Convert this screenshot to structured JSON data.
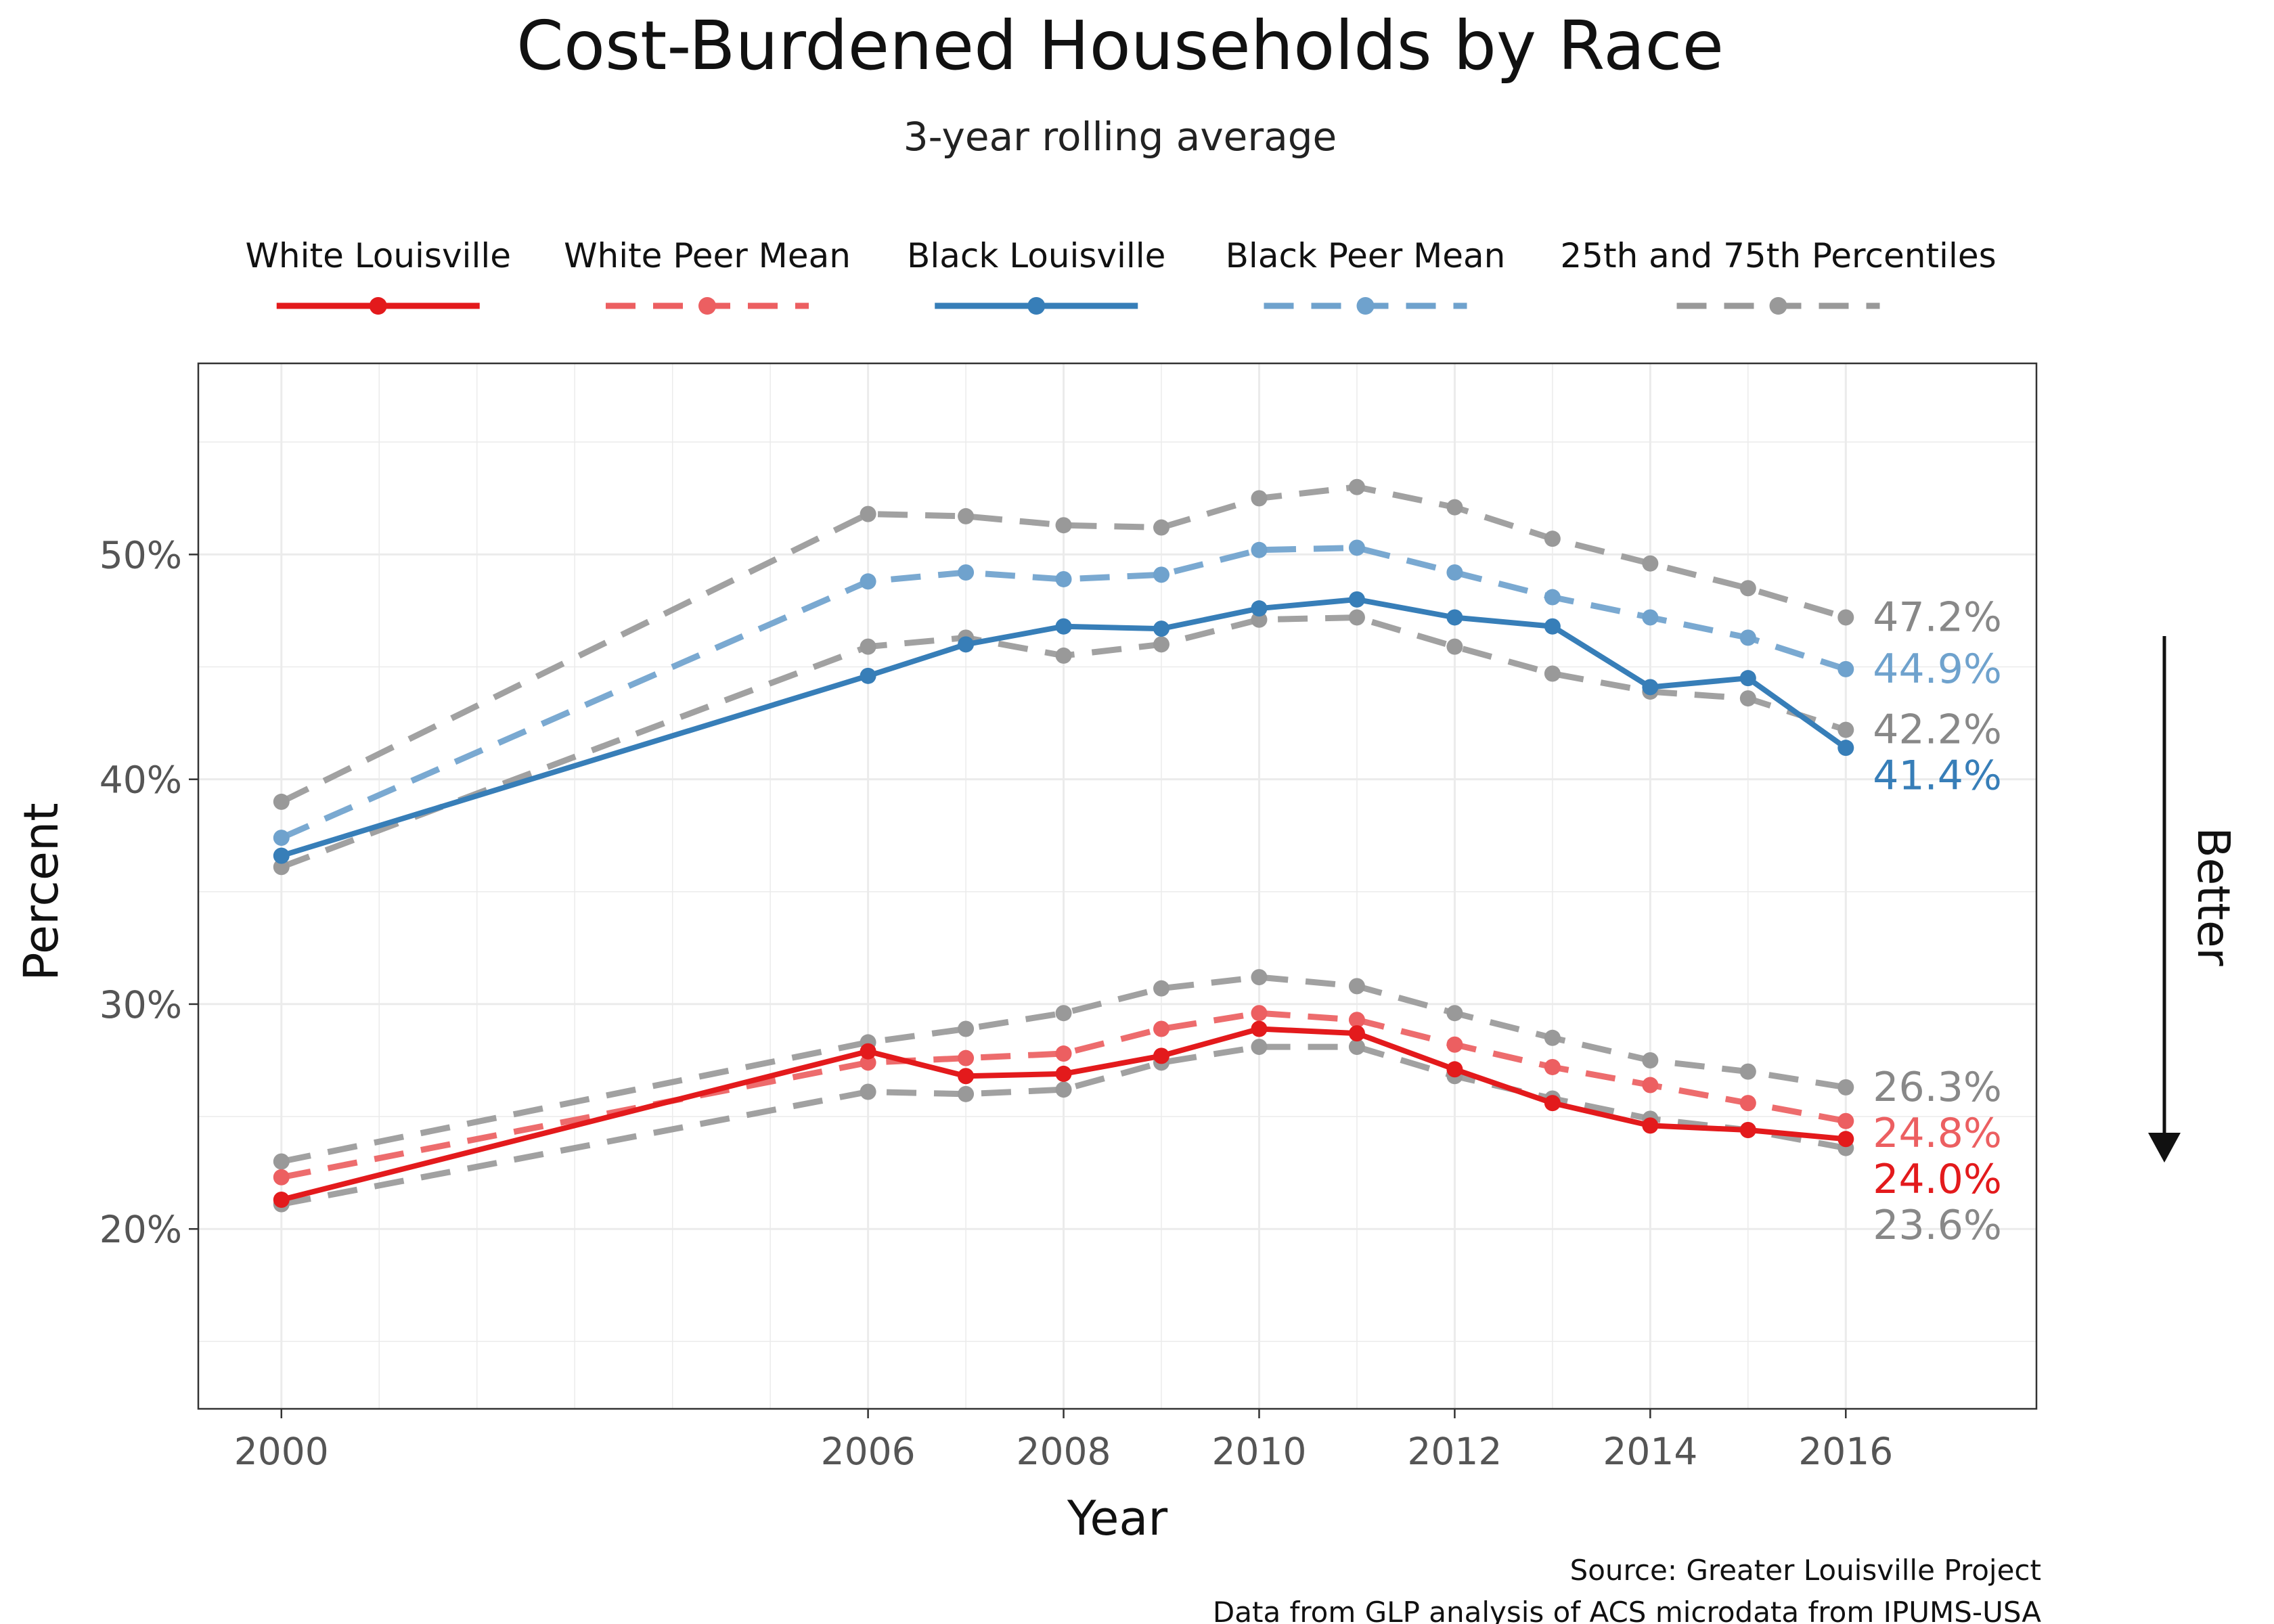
{
  "chart_data": {
    "type": "line",
    "title": "Cost-Burdened Households by Race",
    "subtitle": "3-year rolling average",
    "xlabel": "Year",
    "ylabel": "Percent",
    "x": [
      2000,
      2006,
      2007,
      2008,
      2009,
      2010,
      2011,
      2012,
      2013,
      2014,
      2015,
      2016
    ],
    "x_ticks": [
      2000,
      2006,
      2008,
      2010,
      2012,
      2014,
      2016
    ],
    "x_tick_labels": [
      "2000",
      "2006",
      "2008",
      "2010",
      "2012",
      "2014",
      "2016"
    ],
    "xlim": [
      1999.15,
      2017.95
    ],
    "y_ticks": [
      20,
      30,
      40,
      50
    ],
    "y_tick_labels": [
      "20%",
      "30%",
      "40%",
      "50%"
    ],
    "ylim": [
      12,
      58.5
    ],
    "grid": true,
    "legend_position": "top",
    "legend": [
      {
        "name": "White Louisville",
        "color": "#e31a1c",
        "dashed": false
      },
      {
        "name": "White Peer Mean",
        "color": "#ec5f61",
        "dashed": true
      },
      {
        "name": "Black Louisville",
        "color": "#377eb8",
        "dashed": false
      },
      {
        "name": "Black Peer Mean",
        "color": "#6fa2cd",
        "dashed": true
      },
      {
        "name": "25th and 75th Percentiles",
        "color": "#999999",
        "dashed": true
      }
    ],
    "series": [
      {
        "key": "white_p75",
        "color": "#999999",
        "dashed": true,
        "end_label": "26.3%",
        "values": [
          23.0,
          28.3,
          28.9,
          29.6,
          30.7,
          31.2,
          30.8,
          29.6,
          28.5,
          27.5,
          27.0,
          26.3
        ]
      },
      {
        "key": "white_p25",
        "color": "#999999",
        "dashed": true,
        "end_label": "23.6%",
        "values": [
          21.1,
          26.1,
          26.0,
          26.2,
          27.4,
          28.1,
          28.1,
          26.8,
          25.8,
          24.9,
          24.4,
          23.6
        ]
      },
      {
        "key": "white_peer",
        "color": "#ec5f61",
        "dashed": true,
        "end_label": "24.8%",
        "values": [
          22.3,
          27.4,
          27.6,
          27.8,
          28.9,
          29.6,
          29.3,
          28.2,
          27.2,
          26.4,
          25.6,
          24.8
        ]
      },
      {
        "key": "white_louisville",
        "color": "#e31a1c",
        "dashed": false,
        "end_label": "24.0%",
        "values": [
          21.3,
          27.9,
          26.8,
          26.9,
          27.7,
          28.9,
          28.7,
          27.1,
          25.6,
          24.6,
          24.4,
          24.0
        ]
      },
      {
        "key": "black_p75",
        "color": "#999999",
        "dashed": true,
        "end_label": "47.2%",
        "values": [
          39.0,
          51.8,
          51.7,
          51.3,
          51.2,
          52.5,
          53.0,
          52.1,
          50.7,
          49.6,
          48.5,
          47.2
        ]
      },
      {
        "key": "black_p25",
        "color": "#999999",
        "dashed": true,
        "end_label": "42.2%",
        "values": [
          36.1,
          45.9,
          46.3,
          45.5,
          46.0,
          47.1,
          47.2,
          45.9,
          44.7,
          43.9,
          43.6,
          42.2
        ]
      },
      {
        "key": "black_peer",
        "color": "#6fa2cd",
        "dashed": true,
        "end_label": "44.9%",
        "values": [
          37.4,
          48.8,
          49.2,
          48.9,
          49.1,
          50.2,
          50.3,
          49.2,
          48.1,
          47.2,
          46.3,
          44.9
        ]
      },
      {
        "key": "black_louisville",
        "color": "#377eb8",
        "dashed": false,
        "end_label": "41.4%",
        "values": [
          36.6,
          44.6,
          46.0,
          46.8,
          46.7,
          47.6,
          48.0,
          47.2,
          46.8,
          44.1,
          44.5,
          41.4
        ]
      }
    ],
    "annotation": "Better",
    "source_lines": [
      "Source: Greater Louisville Project",
      "Data from GLP analysis of ACS microdata from IPUMS-USA"
    ]
  }
}
